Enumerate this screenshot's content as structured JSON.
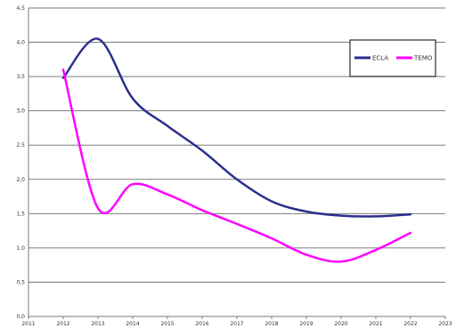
{
  "chart_data": {
    "type": "line",
    "title": "",
    "xlabel": "",
    "ylabel": "",
    "xlim": [
      2011,
      2023
    ],
    "ylim": [
      0,
      4.5
    ],
    "x_ticks": [
      "2011",
      "2012",
      "2013",
      "2014",
      "2015",
      "2016",
      "2017",
      "2018",
      "2019",
      "2020",
      "2021",
      "2022",
      "2023"
    ],
    "y_ticks": [
      "0,0",
      "0,5",
      "1,0",
      "1,5",
      "2,0",
      "2,5",
      "3,0",
      "3,5",
      "4,0",
      "4,5"
    ],
    "grid": true,
    "legend_position": "top-right",
    "series": [
      {
        "name": "ECLA",
        "color": "#2b2f8c",
        "x": [
          2012,
          2013,
          2014,
          2015,
          2016,
          2017,
          2018,
          2019,
          2020,
          2021,
          2022
        ],
        "y": [
          3.48,
          4.05,
          3.18,
          2.78,
          2.42,
          2.0,
          1.68,
          1.53,
          1.47,
          1.46,
          1.49
        ]
      },
      {
        "name": "TEMO",
        "color": "#ff00ff",
        "x": [
          2012,
          2013,
          2014,
          2015,
          2016,
          2017,
          2018,
          2019,
          2020,
          2021,
          2022
        ],
        "y": [
          3.6,
          1.58,
          1.93,
          1.78,
          1.55,
          1.35,
          1.14,
          0.9,
          0.8,
          0.97,
          1.22
        ]
      }
    ]
  }
}
